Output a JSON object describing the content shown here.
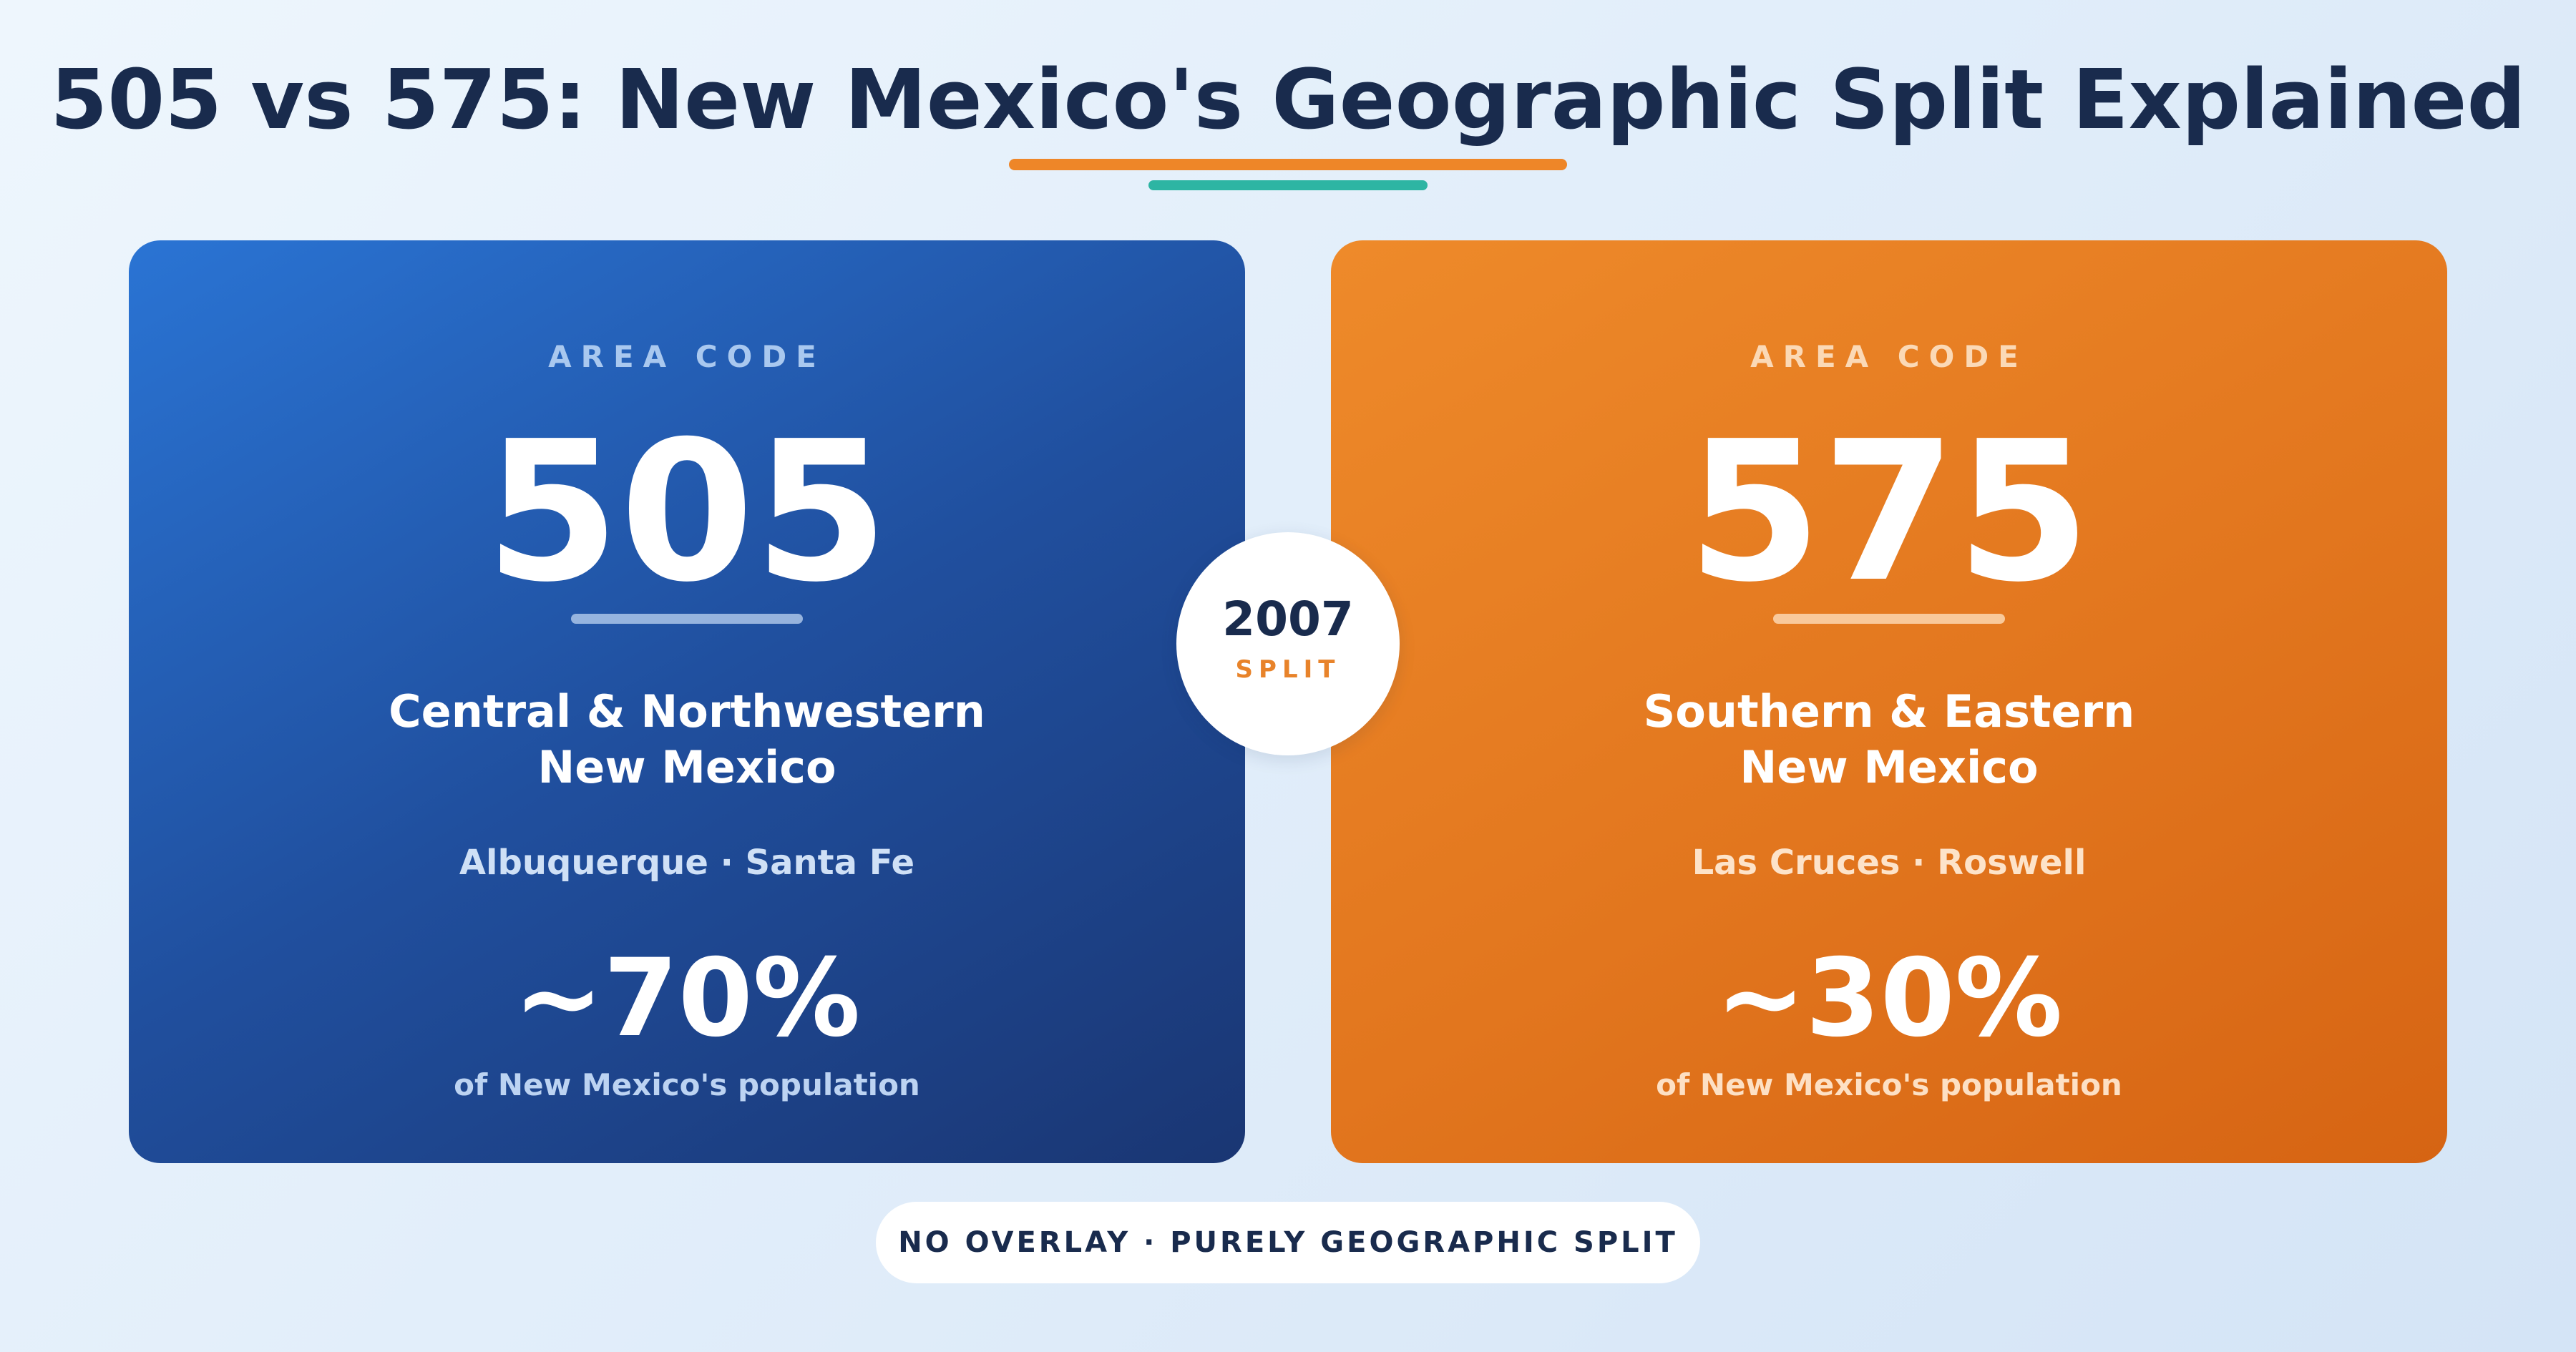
{
  "title": "505 vs 575: New Mexico's Geographic Split Explained",
  "colors": {
    "accent_orange": "#ee8628",
    "accent_teal": "#2db5a3",
    "navy_text": "#192b4d",
    "card_blue": "#2155a8",
    "card_orange": "#e67a22"
  },
  "cards": [
    {
      "eyebrow": "AREA CODE",
      "code": "505",
      "region_line1": "Central & Northwestern",
      "region_line2": "New Mexico",
      "cities": "Albuquerque · Santa Fe",
      "population_share": "~70%",
      "population_label": "of New Mexico's population"
    },
    {
      "eyebrow": "AREA CODE",
      "code": "575",
      "region_line1": "Southern & Eastern",
      "region_line2": "New Mexico",
      "cities": "Las Cruces · Roswell",
      "population_share": "~30%",
      "population_label": "of New Mexico's population"
    }
  ],
  "split_badge": {
    "year": "2007",
    "label": "SPLIT"
  },
  "footer": "NO OVERLAY · PURELY GEOGRAPHIC SPLIT"
}
